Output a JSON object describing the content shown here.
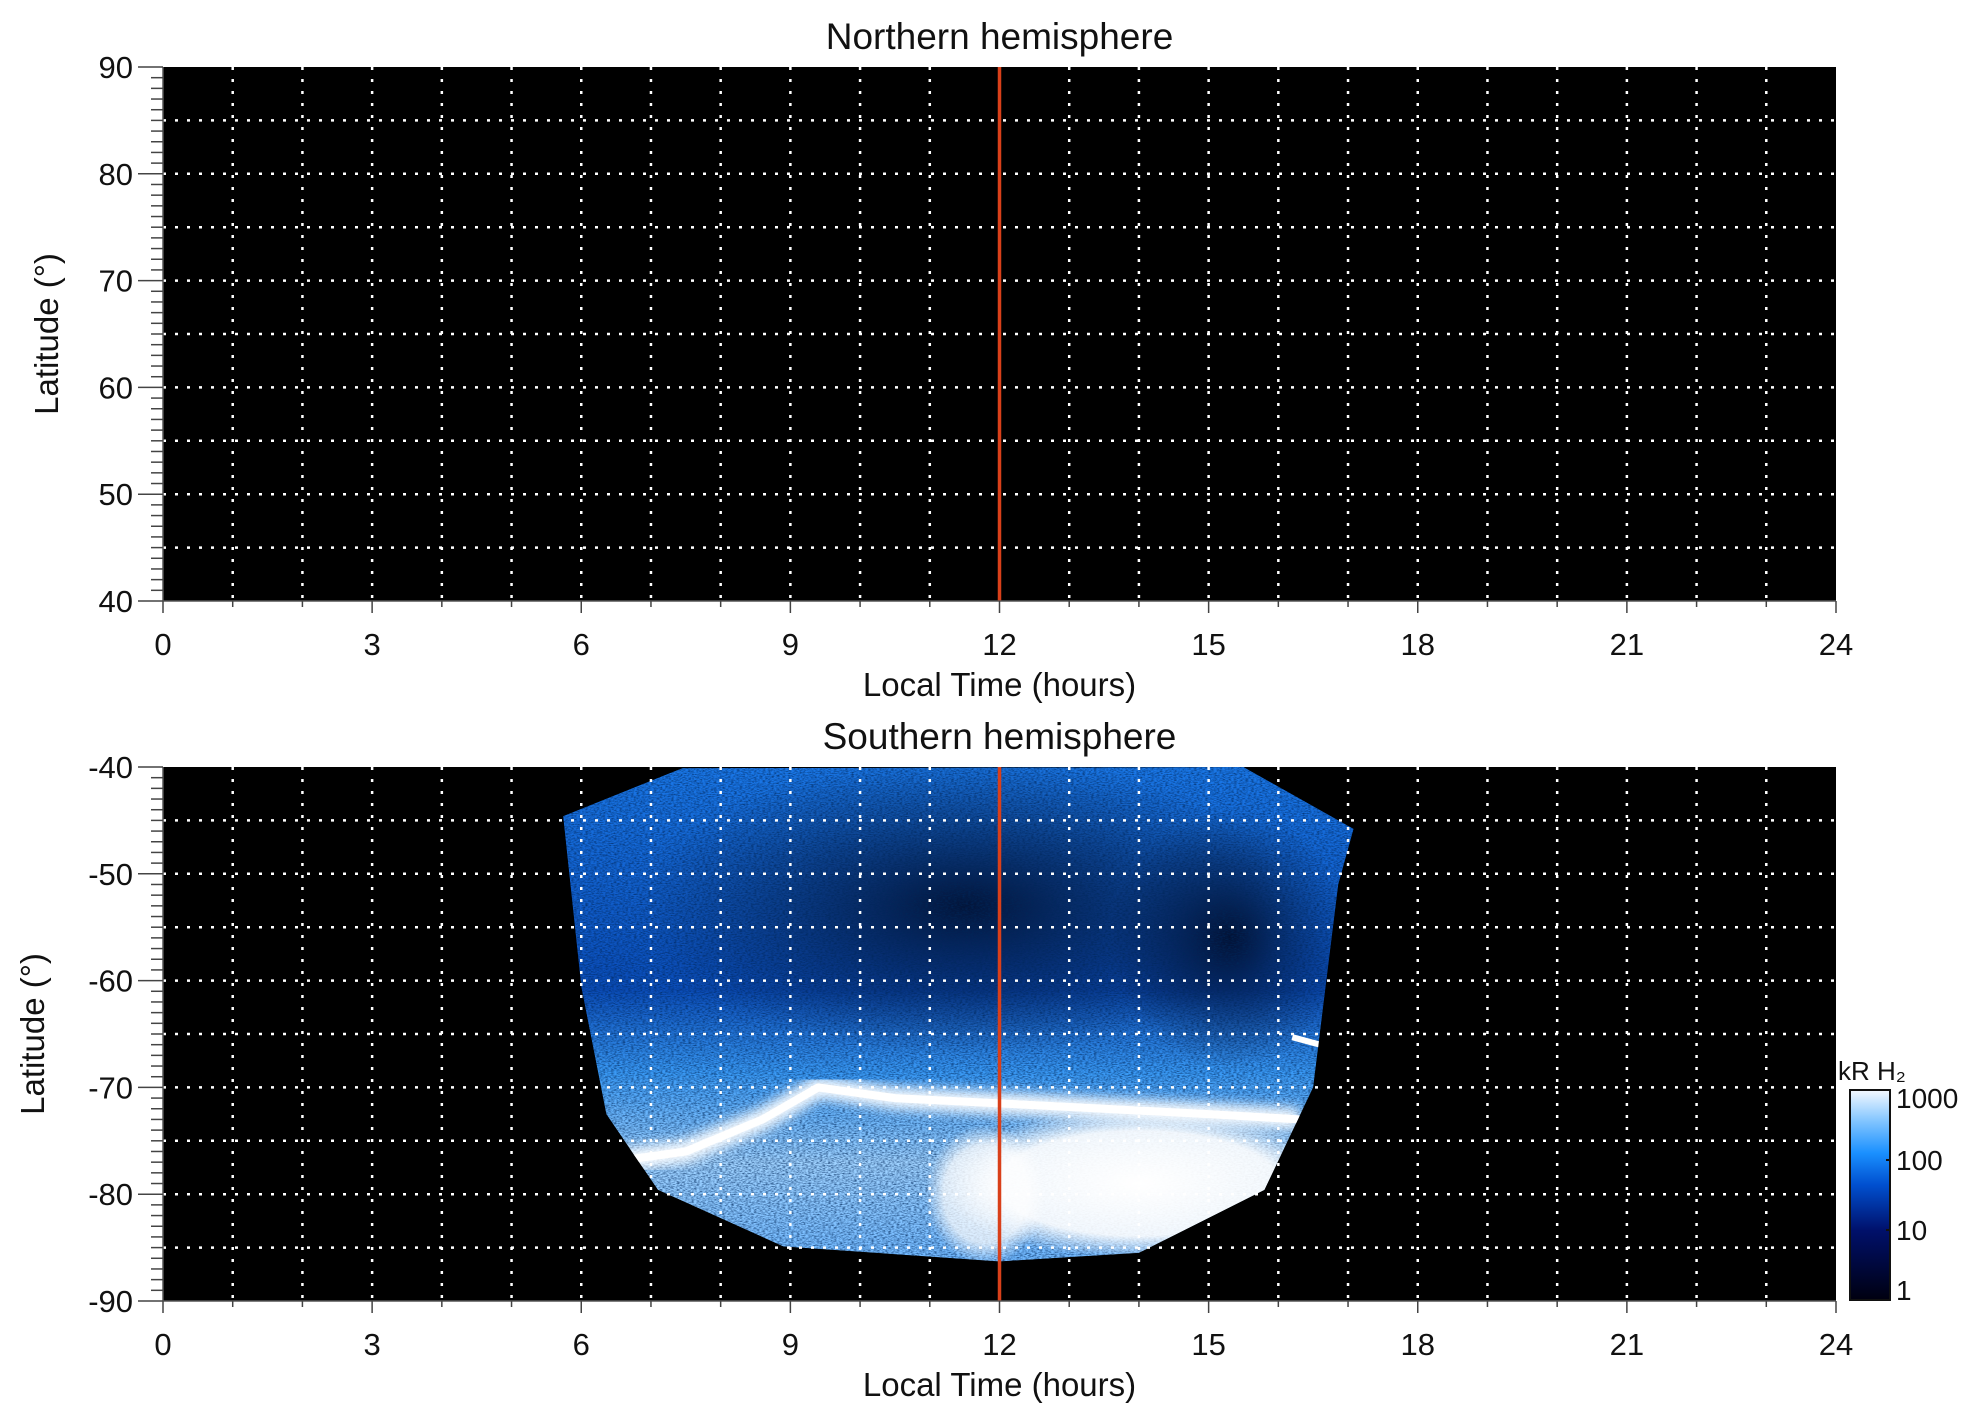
{
  "chart_data": [
    {
      "type": "heatmap",
      "title": "Northern hemisphere",
      "xlabel": "Local Time (hours)",
      "ylabel": "Latitude (°)",
      "xlim": [
        0,
        24
      ],
      "ylim": [
        40,
        90
      ],
      "xticks": [
        0,
        3,
        6,
        9,
        12,
        15,
        18,
        21,
        24
      ],
      "xtick_labels": [
        "0",
        "3",
        "6",
        "9",
        "12",
        "15",
        "18",
        "21",
        "24"
      ],
      "yticks": [
        40,
        50,
        60,
        70,
        80,
        90
      ],
      "ytick_labels": [
        "40",
        "50",
        "60",
        "70",
        "80",
        "90"
      ],
      "grid": true,
      "grid_x_step": 1,
      "grid_y_step": 5,
      "marker_line_x": 12,
      "emission": "none"
    },
    {
      "type": "heatmap",
      "title": "Southern hemisphere",
      "xlabel": "Local Time (hours)",
      "ylabel": "Latitude (°)",
      "xlim": [
        0,
        24
      ],
      "ylim": [
        -90,
        -40
      ],
      "xticks": [
        0,
        3,
        6,
        9,
        12,
        15,
        18,
        21,
        24
      ],
      "xtick_labels": [
        "0",
        "3",
        "6",
        "9",
        "12",
        "15",
        "18",
        "21",
        "24"
      ],
      "yticks": [
        -90,
        -80,
        -70,
        -60,
        -50,
        -40
      ],
      "ytick_labels": [
        "-90",
        "-80",
        "-70",
        "-60",
        "-50",
        "-40"
      ],
      "grid": true,
      "grid_x_step": 1,
      "grid_y_step": 5,
      "marker_line_x": 12,
      "emission_outline": [
        [
          5.74,
          -44.6
        ],
        [
          7.45,
          -40.1
        ],
        [
          15.5,
          -40
        ],
        [
          17.08,
          -45.8
        ],
        [
          16.86,
          -51
        ],
        [
          16.5,
          -70
        ],
        [
          15.8,
          -79.6
        ],
        [
          14.0,
          -85.5
        ],
        [
          12.0,
          -86.3
        ],
        [
          8.9,
          -84.9
        ],
        [
          7.1,
          -79.6
        ],
        [
          6.36,
          -72.5
        ],
        [
          6.0,
          -60.6
        ]
      ],
      "main_oval": [
        [
          6.4,
          -77
        ],
        [
          7.5,
          -76
        ],
        [
          8.6,
          -73
        ],
        [
          9.4,
          -70
        ],
        [
          10.5,
          -71
        ],
        [
          12,
          -71.5
        ],
        [
          13.5,
          -72
        ],
        [
          15,
          -72.5
        ],
        [
          16.3,
          -73
        ]
      ],
      "colorbar": {
        "label": "kR H₂",
        "scale": "log",
        "range": [
          1,
          1000
        ],
        "ticks": [
          1,
          10,
          100,
          1000
        ],
        "tick_labels": [
          "1",
          "10",
          "100",
          "1000"
        ]
      }
    }
  ],
  "colors": {
    "marker_line": "#d9401a",
    "grid": "#ffffff",
    "background": "#000000"
  }
}
